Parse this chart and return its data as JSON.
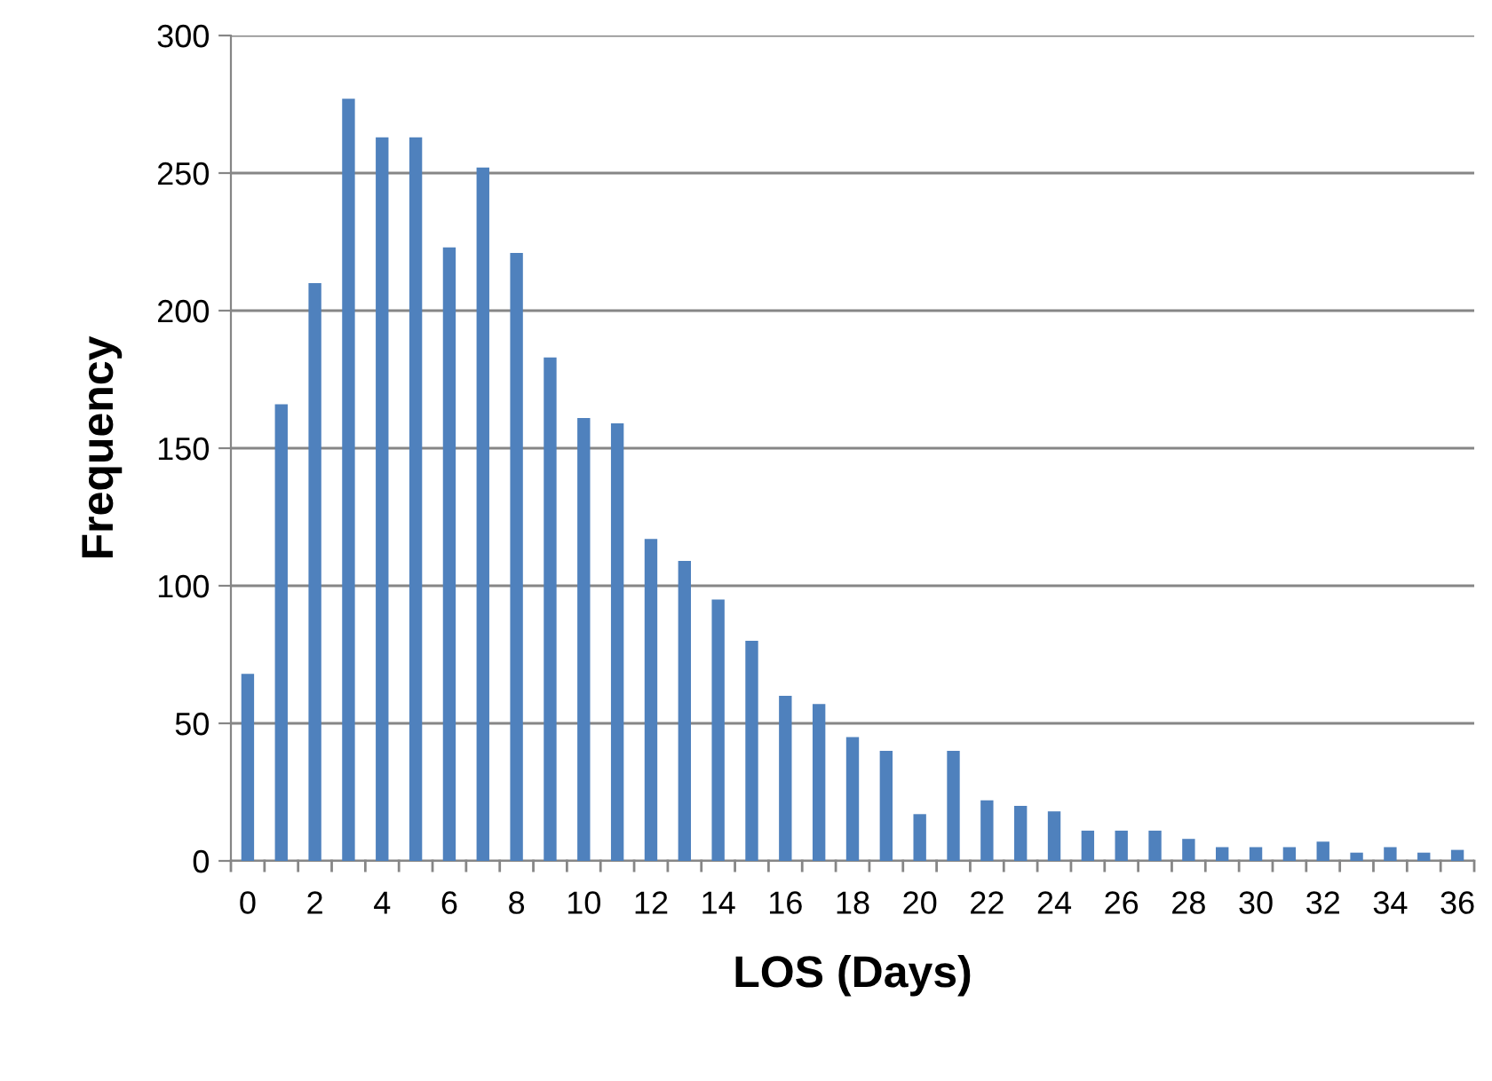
{
  "chart_data": {
    "type": "bar",
    "xlabel": "LOS (Days)",
    "ylabel": "Frequency",
    "categories": [
      "0",
      null,
      "2",
      null,
      "4",
      null,
      "6",
      null,
      "8",
      null,
      "10",
      null,
      "12",
      null,
      "14",
      null,
      "16",
      null,
      "18",
      null,
      "20",
      null,
      "22",
      null,
      "24",
      null,
      "26",
      null,
      "28",
      null,
      "30",
      null,
      "32",
      null,
      "34",
      null,
      "36"
    ],
    "values": [
      68,
      166,
      210,
      277,
      263,
      263,
      223,
      252,
      221,
      183,
      161,
      159,
      117,
      109,
      95,
      80,
      60,
      57,
      45,
      40,
      17,
      40,
      22,
      20,
      18,
      11,
      11,
      11,
      8,
      5,
      5,
      5,
      7,
      3,
      5,
      3,
      4
    ],
    "color": "#4f81bd",
    "ylim": [
      0,
      300
    ],
    "yticks": [
      0,
      50,
      100,
      150,
      200,
      250,
      300
    ],
    "grid": "y",
    "legend": false
  }
}
